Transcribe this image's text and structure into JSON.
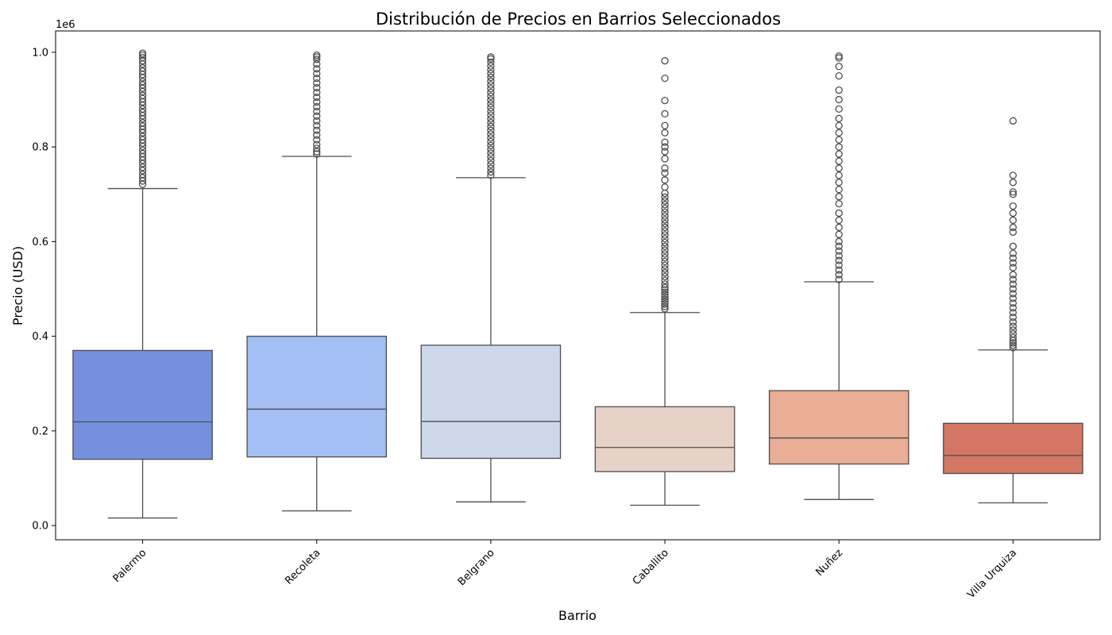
{
  "chart_data": {
    "type": "box",
    "title": "Distribución de Precios en Barrios Seleccionados",
    "xlabel": "Barrio",
    "ylabel": "Precio (USD)",
    "y_offset_label": "1e6",
    "ylim": [
      -0.03,
      1.045
    ],
    "y_ticks": [
      0.0,
      0.2,
      0.4,
      0.6,
      0.8,
      1.0
    ],
    "y_tick_labels": [
      "0.0",
      "0.2",
      "0.4",
      "0.6",
      "0.8",
      "1.0"
    ],
    "grid": false,
    "legend": "none",
    "median_color": "#4d4d4d",
    "categories": [
      "Palermo",
      "Recoleta",
      "Belgrano",
      "Caballito",
      "Nuñez",
      "Villa Urquiza"
    ],
    "colors": [
      "#7590de",
      "#a3bff3",
      "#cdd8eb",
      "#e8d1c7",
      "#eaad96",
      "#d37663"
    ],
    "boxes": [
      {
        "q1": 0.14,
        "median": 0.219,
        "q3": 0.37,
        "whisker_low": 0.016,
        "whisker_high": 0.712,
        "outliers": [
          0.721,
          0.728,
          0.735,
          0.742,
          0.75,
          0.757,
          0.765,
          0.772,
          0.779,
          0.786,
          0.793,
          0.801,
          0.808,
          0.815,
          0.822,
          0.83,
          0.837,
          0.844,
          0.851,
          0.859,
          0.866,
          0.873,
          0.88,
          0.888,
          0.895,
          0.902,
          0.909,
          0.917,
          0.924,
          0.931,
          0.938,
          0.946,
          0.953,
          0.96,
          0.967,
          0.975,
          0.982,
          0.989,
          0.994,
          0.998
        ]
      },
      {
        "q1": 0.145,
        "median": 0.246,
        "q3": 0.4,
        "whisker_low": 0.031,
        "whisker_high": 0.78,
        "outliers": [
          0.785,
          0.79,
          0.797,
          0.805,
          0.815,
          0.825,
          0.835,
          0.845,
          0.855,
          0.865,
          0.875,
          0.885,
          0.895,
          0.905,
          0.915,
          0.925,
          0.935,
          0.945,
          0.955,
          0.965,
          0.975,
          0.985,
          0.99,
          0.994
        ]
      },
      {
        "q1": 0.142,
        "median": 0.22,
        "q3": 0.381,
        "whisker_low": 0.05,
        "whisker_high": 0.735,
        "outliers": [
          0.74,
          0.747,
          0.755,
          0.763,
          0.771,
          0.779,
          0.787,
          0.795,
          0.803,
          0.811,
          0.819,
          0.827,
          0.835,
          0.843,
          0.851,
          0.859,
          0.867,
          0.875,
          0.883,
          0.891,
          0.899,
          0.907,
          0.915,
          0.923,
          0.931,
          0.939,
          0.947,
          0.955,
          0.963,
          0.971,
          0.979,
          0.986,
          0.99
        ]
      },
      {
        "q1": 0.114,
        "median": 0.165,
        "q3": 0.251,
        "whisker_low": 0.043,
        "whisker_high": 0.45,
        "outliers": [
          0.458,
          0.463,
          0.468,
          0.473,
          0.478,
          0.483,
          0.488,
          0.493,
          0.498,
          0.503,
          0.51,
          0.518,
          0.526,
          0.534,
          0.542,
          0.55,
          0.558,
          0.566,
          0.574,
          0.582,
          0.59,
          0.598,
          0.606,
          0.614,
          0.622,
          0.63,
          0.638,
          0.646,
          0.654,
          0.662,
          0.67,
          0.678,
          0.686,
          0.694,
          0.702,
          0.715,
          0.73,
          0.745,
          0.755,
          0.775,
          0.79,
          0.8,
          0.81,
          0.83,
          0.845,
          0.87,
          0.898,
          0.945,
          0.982
        ]
      },
      {
        "q1": 0.13,
        "median": 0.185,
        "q3": 0.285,
        "whisker_low": 0.055,
        "whisker_high": 0.515,
        "outliers": [
          0.52,
          0.53,
          0.54,
          0.55,
          0.56,
          0.57,
          0.58,
          0.59,
          0.6,
          0.615,
          0.63,
          0.645,
          0.66,
          0.68,
          0.695,
          0.71,
          0.725,
          0.74,
          0.755,
          0.77,
          0.785,
          0.8,
          0.815,
          0.83,
          0.845,
          0.86,
          0.88,
          0.9,
          0.92,
          0.95,
          0.97,
          0.988,
          0.992
        ]
      },
      {
        "q1": 0.11,
        "median": 0.148,
        "q3": 0.216,
        "whisker_low": 0.048,
        "whisker_high": 0.371,
        "outliers": [
          0.376,
          0.381,
          0.386,
          0.391,
          0.397,
          0.405,
          0.413,
          0.421,
          0.43,
          0.44,
          0.45,
          0.46,
          0.47,
          0.48,
          0.49,
          0.5,
          0.51,
          0.52,
          0.53,
          0.545,
          0.555,
          0.565,
          0.575,
          0.59,
          0.62,
          0.63,
          0.645,
          0.66,
          0.675,
          0.7,
          0.705,
          0.725,
          0.74,
          0.855
        ]
      }
    ]
  }
}
